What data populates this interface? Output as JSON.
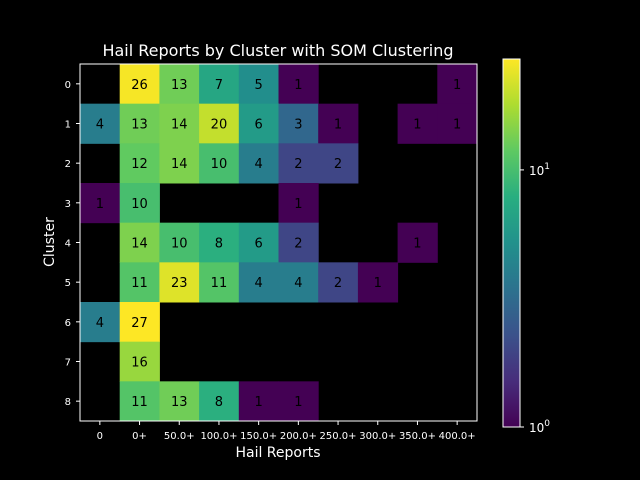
{
  "chart_data": {
    "type": "heatmap",
    "title": "Hail Reports by Cluster with SOM Clustering",
    "xlabel": "Hail Reports",
    "ylabel": "Cluster",
    "x_categories": [
      "0",
      "0+",
      "50.0+",
      "100.0+",
      "150.0+",
      "200.0+",
      "250.0+",
      "300.0+",
      "350.0+",
      "400.0+"
    ],
    "y_categories": [
      "0",
      "1",
      "2",
      "3",
      "4",
      "5",
      "6",
      "7",
      "8"
    ],
    "values": [
      [
        null,
        26,
        13,
        7,
        5,
        1,
        null,
        null,
        null,
        1
      ],
      [
        4,
        13,
        14,
        20,
        6,
        3,
        1,
        null,
        1,
        1
      ],
      [
        null,
        12,
        14,
        10,
        4,
        2,
        2,
        null,
        null,
        null
      ],
      [
        1,
        10,
        null,
        null,
        null,
        1,
        null,
        null,
        null,
        null
      ],
      [
        null,
        14,
        10,
        8,
        6,
        2,
        null,
        null,
        1,
        null
      ],
      [
        null,
        11,
        23,
        11,
        4,
        4,
        2,
        1,
        null,
        null
      ],
      [
        4,
        27,
        null,
        null,
        null,
        null,
        null,
        null,
        null,
        null
      ],
      [
        null,
        16,
        null,
        null,
        null,
        null,
        null,
        null,
        null,
        null
      ],
      [
        null,
        11,
        13,
        8,
        1,
        1,
        null,
        null,
        null,
        null
      ]
    ],
    "colormap": "viridis",
    "color_scale": "log",
    "color_range": [
      1,
      27
    ],
    "colorbar_ticks": [
      {
        "value": 1,
        "label": "10",
        "exp": "0"
      },
      {
        "value": 10,
        "label": "10",
        "exp": "1"
      }
    ],
    "background_color": "#000000",
    "grid": false
  }
}
